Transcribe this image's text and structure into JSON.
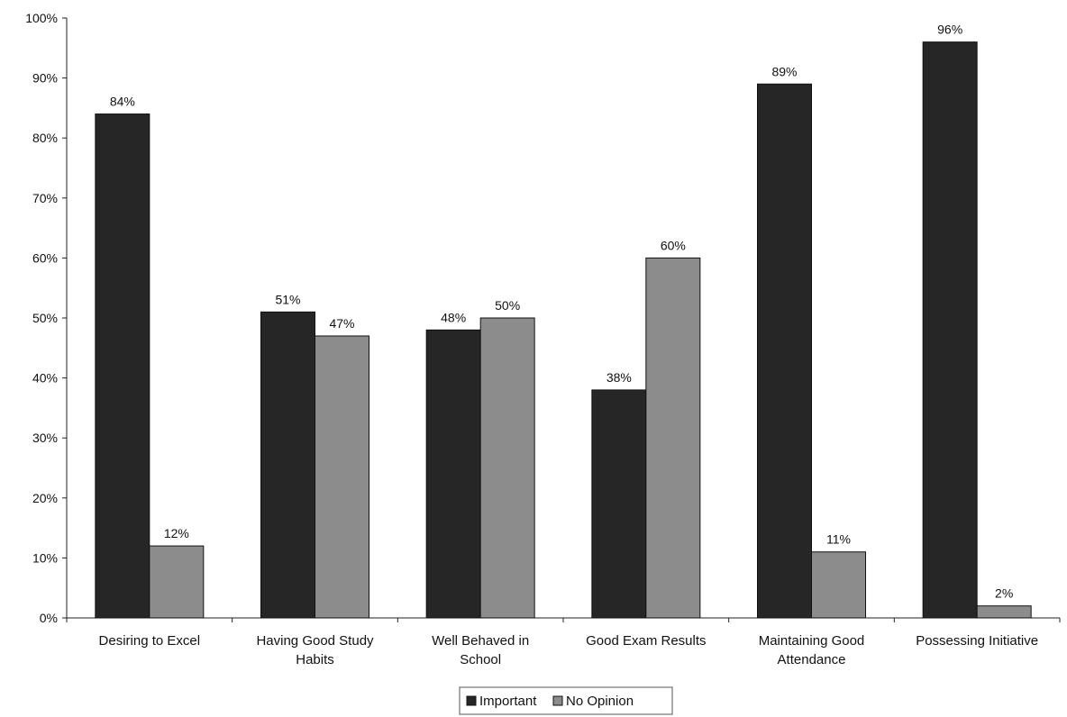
{
  "chart_data": {
    "type": "bar",
    "categories": [
      "Desiring to Excel",
      "Having Good Study Habits",
      "Well Behaved in School",
      "Good Exam Results",
      "Maintaining Good Attendance",
      "Possessing Initiative"
    ],
    "category_lines": [
      [
        "Desiring to Excel"
      ],
      [
        "Having Good Study",
        "Habits"
      ],
      [
        "Well Behaved in",
        "School"
      ],
      [
        "Good Exam Results"
      ],
      [
        "Maintaining Good",
        "Attendance"
      ],
      [
        "Possessing Initiative"
      ]
    ],
    "series": [
      {
        "name": "Important",
        "color": "#262626",
        "values": [
          84,
          51,
          48,
          38,
          89,
          96
        ]
      },
      {
        "name": "No Opinion",
        "color": "#8c8c8c",
        "values": [
          12,
          47,
          50,
          60,
          11,
          2
        ]
      }
    ],
    "data_labels": [
      [
        "84%",
        "51%",
        "48%",
        "38%",
        "89%",
        "96%"
      ],
      [
        "12%",
        "47%",
        "50%",
        "60%",
        "11%",
        "2%"
      ]
    ],
    "yticks": [
      "0%",
      "10%",
      "20%",
      "30%",
      "40%",
      "50%",
      "60%",
      "70%",
      "80%",
      "90%",
      "100%"
    ],
    "ylim": [
      0,
      100
    ],
    "title": "",
    "xlabel": "",
    "ylabel": "",
    "grid": false,
    "legend_position": "bottom-center"
  }
}
